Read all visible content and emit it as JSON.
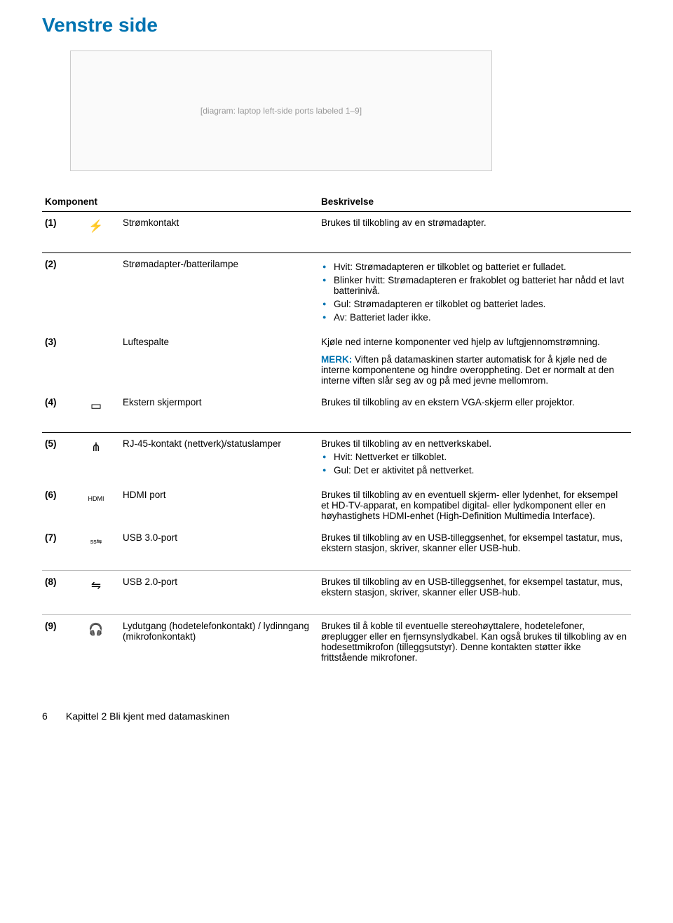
{
  "title": "Venstre side",
  "diagram_placeholder": "[diagram: laptop left-side ports labeled 1–9]",
  "headers": {
    "component": "Komponent",
    "description": "Beskrivelse"
  },
  "rows": [
    {
      "num": "(1)",
      "icon": "⚡",
      "name": "Strømkontakt",
      "desc_text": "Brukes til tilkobling av en strømadapter."
    },
    {
      "num": "(2)",
      "icon": "",
      "name": "Strømadapter-/batterilampe",
      "bullets": [
        "Hvit: Strømadapteren er tilkoblet og batteriet er fulladet.",
        "Blinker hvitt: Strømadapteren er frakoblet og batteriet har nådd et lavt batterinivå.",
        "Gul: Strømadapteren er tilkoblet og batteriet lades.",
        "Av: Batteriet lader ikke."
      ]
    },
    {
      "num": "(3)",
      "icon": "",
      "name": "Luftespalte",
      "desc_text": "Kjøle ned interne komponenter ved hjelp av luftgjennomstrømning.",
      "note_label": "MERK:",
      "note_text": "Viften på datamaskinen starter automatisk for å kjøle ned de interne komponentene og hindre overoppheting. Det er normalt at den interne viften slår seg av og på med jevne mellomrom."
    },
    {
      "num": "(4)",
      "icon": "▭",
      "name": "Ekstern skjermport",
      "desc_text": "Brukes til tilkobling av en ekstern VGA-skjerm eller projektor."
    },
    {
      "num": "(5)",
      "icon": "⋔",
      "name": "RJ-45-kontakt (nettverk)/statuslamper",
      "desc_text": "Brukes til tilkobling av en nettverkskabel.",
      "bullets": [
        "Hvit: Nettverket er tilkoblet.",
        "Gul: Det er aktivitet på nettverket."
      ]
    },
    {
      "num": "(6)",
      "icon": "HDMI",
      "name": "HDMI port",
      "desc_text": "Brukes til tilkobling av en eventuell skjerm- eller lydenhet, for eksempel et HD-TV-apparat, en kompatibel digital- eller lydkomponent eller en høyhastighets HDMI-enhet (High-Definition Multimedia Interface)."
    },
    {
      "num": "(7)",
      "icon": "ss⇋",
      "name": "USB 3.0-port",
      "desc_text": "Brukes til tilkobling av en USB-tilleggsenhet, for eksempel tastatur, mus, ekstern stasjon, skriver, skanner eller USB-hub."
    },
    {
      "num": "(8)",
      "icon": "⇋",
      "name": "USB 2.0-port",
      "desc_text": "Brukes til tilkobling av en USB-tilleggsenhet, for eksempel tastatur, mus, ekstern stasjon, skriver, skanner eller USB-hub."
    },
    {
      "num": "(9)",
      "icon": "🎧",
      "name": "Lydutgang (hodetelefonkontakt) / lydinngang (mikrofonkontakt)",
      "desc_text": "Brukes til å koble til eventuelle stereohøyttalere, hodetelefoner, øreplugger eller en fjernsynslydkabel. Kan også brukes til tilkobling av en hodesettmikrofon (tilleggsutstyr). Denne kontakten støtter ikke frittstående mikrofoner."
    }
  ],
  "footer": {
    "page": "6",
    "chapter": "Kapittel 2   Bli kjent med datamaskinen"
  }
}
